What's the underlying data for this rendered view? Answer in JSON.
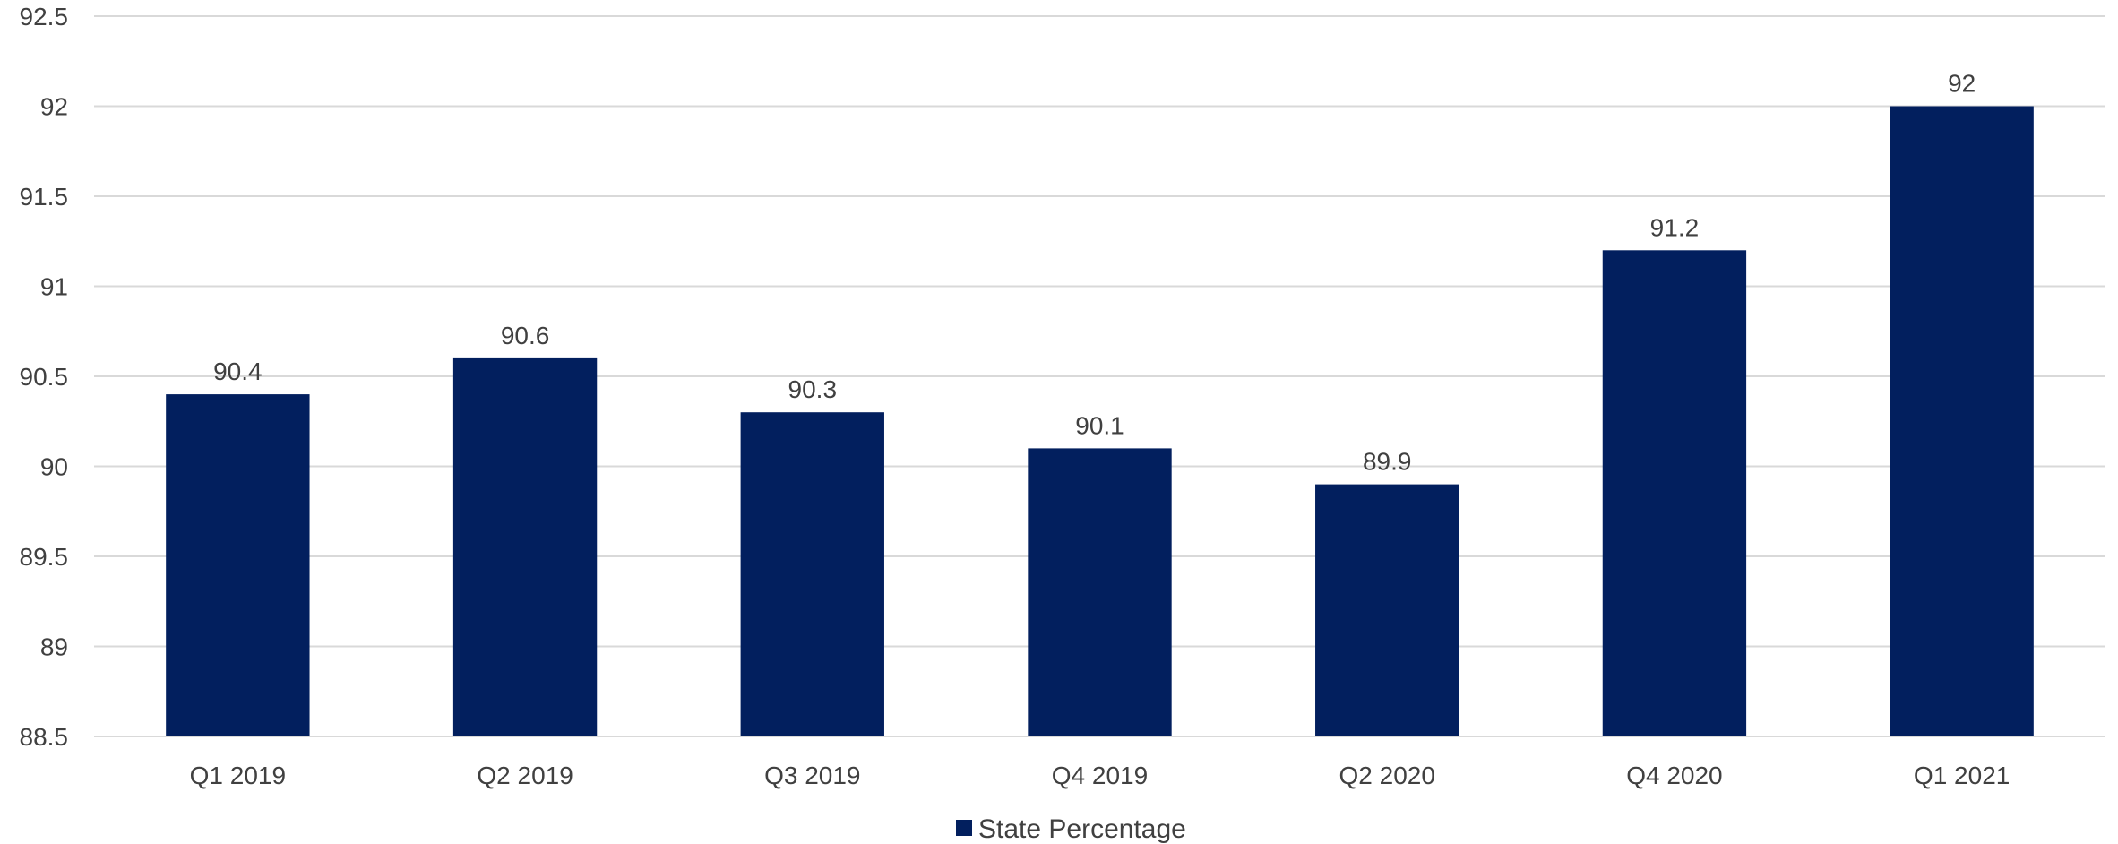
{
  "chart_data": {
    "type": "bar",
    "categories": [
      "Q1 2019",
      "Q2 2019",
      "Q3 2019",
      "Q4 2019",
      "Q2 2020",
      "Q4 2020",
      "Q1 2021"
    ],
    "series": [
      {
        "name": "State Percentage",
        "values": [
          90.4,
          90.6,
          90.3,
          90.1,
          89.9,
          91.2,
          92
        ],
        "color": "#021f5e"
      }
    ],
    "data_labels": [
      "90.4",
      "90.6",
      "90.3",
      "90.1",
      "89.9",
      "91.2",
      "92"
    ],
    "ylim": [
      88.5,
      92.5
    ],
    "y_ticks": [
      88.5,
      89,
      89.5,
      90,
      90.5,
      91,
      91.5,
      92,
      92.5
    ],
    "y_tick_labels": [
      "88.5",
      "89",
      "89.5",
      "90",
      "90.5",
      "91",
      "91.5",
      "92",
      "92.5"
    ],
    "grid": true,
    "legend": {
      "position": "bottom-center",
      "entries": [
        {
          "label": "State Percentage",
          "color": "#021f5e"
        }
      ]
    }
  }
}
